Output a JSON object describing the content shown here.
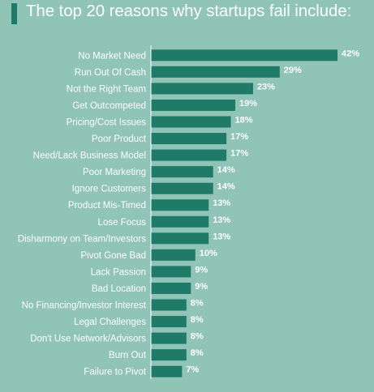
{
  "title": "The top 20 reasons why startups fail include:",
  "colors": {
    "background": "#8fc4b7",
    "bar": "#1f7a68",
    "text": "#ffffff"
  },
  "chart_data": {
    "type": "bar",
    "orientation": "horizontal",
    "title": "The top 20 reasons why startups fail include:",
    "categories": [
      "No Market Need",
      "Run Out Of Cash",
      "Not the Right Team",
      "Get Outcompeted",
      "Pricing/Cost Issues",
      "Poor Product",
      "Need/Lack Business Model",
      "Poor Marketing",
      "Ignore Customers",
      "Product Mis-Timed",
      "Lose Focus",
      "Disharmony on Team/Investors",
      "Pivot Gone Bad",
      "Lack Passion",
      "Bad Location",
      "No Financing/Investor Interest",
      "Legal Challenges",
      "Don't Use Network/Advisors",
      "Burn Out",
      "Failure to Pivot"
    ],
    "values": [
      42,
      29,
      23,
      19,
      18,
      17,
      17,
      14,
      14,
      13,
      13,
      13,
      10,
      9,
      9,
      8,
      8,
      8,
      8,
      7
    ],
    "value_labels": [
      "42%",
      "29%",
      "23%",
      "19%",
      "18%",
      "17%",
      "17%",
      "14%",
      "14%",
      "13%",
      "13%",
      "13%",
      "10%",
      "9%",
      "9%",
      "8%",
      "8%",
      "8%",
      "8%",
      "7%"
    ],
    "xlim": [
      0,
      42
    ],
    "grid": false,
    "legend": "none"
  }
}
